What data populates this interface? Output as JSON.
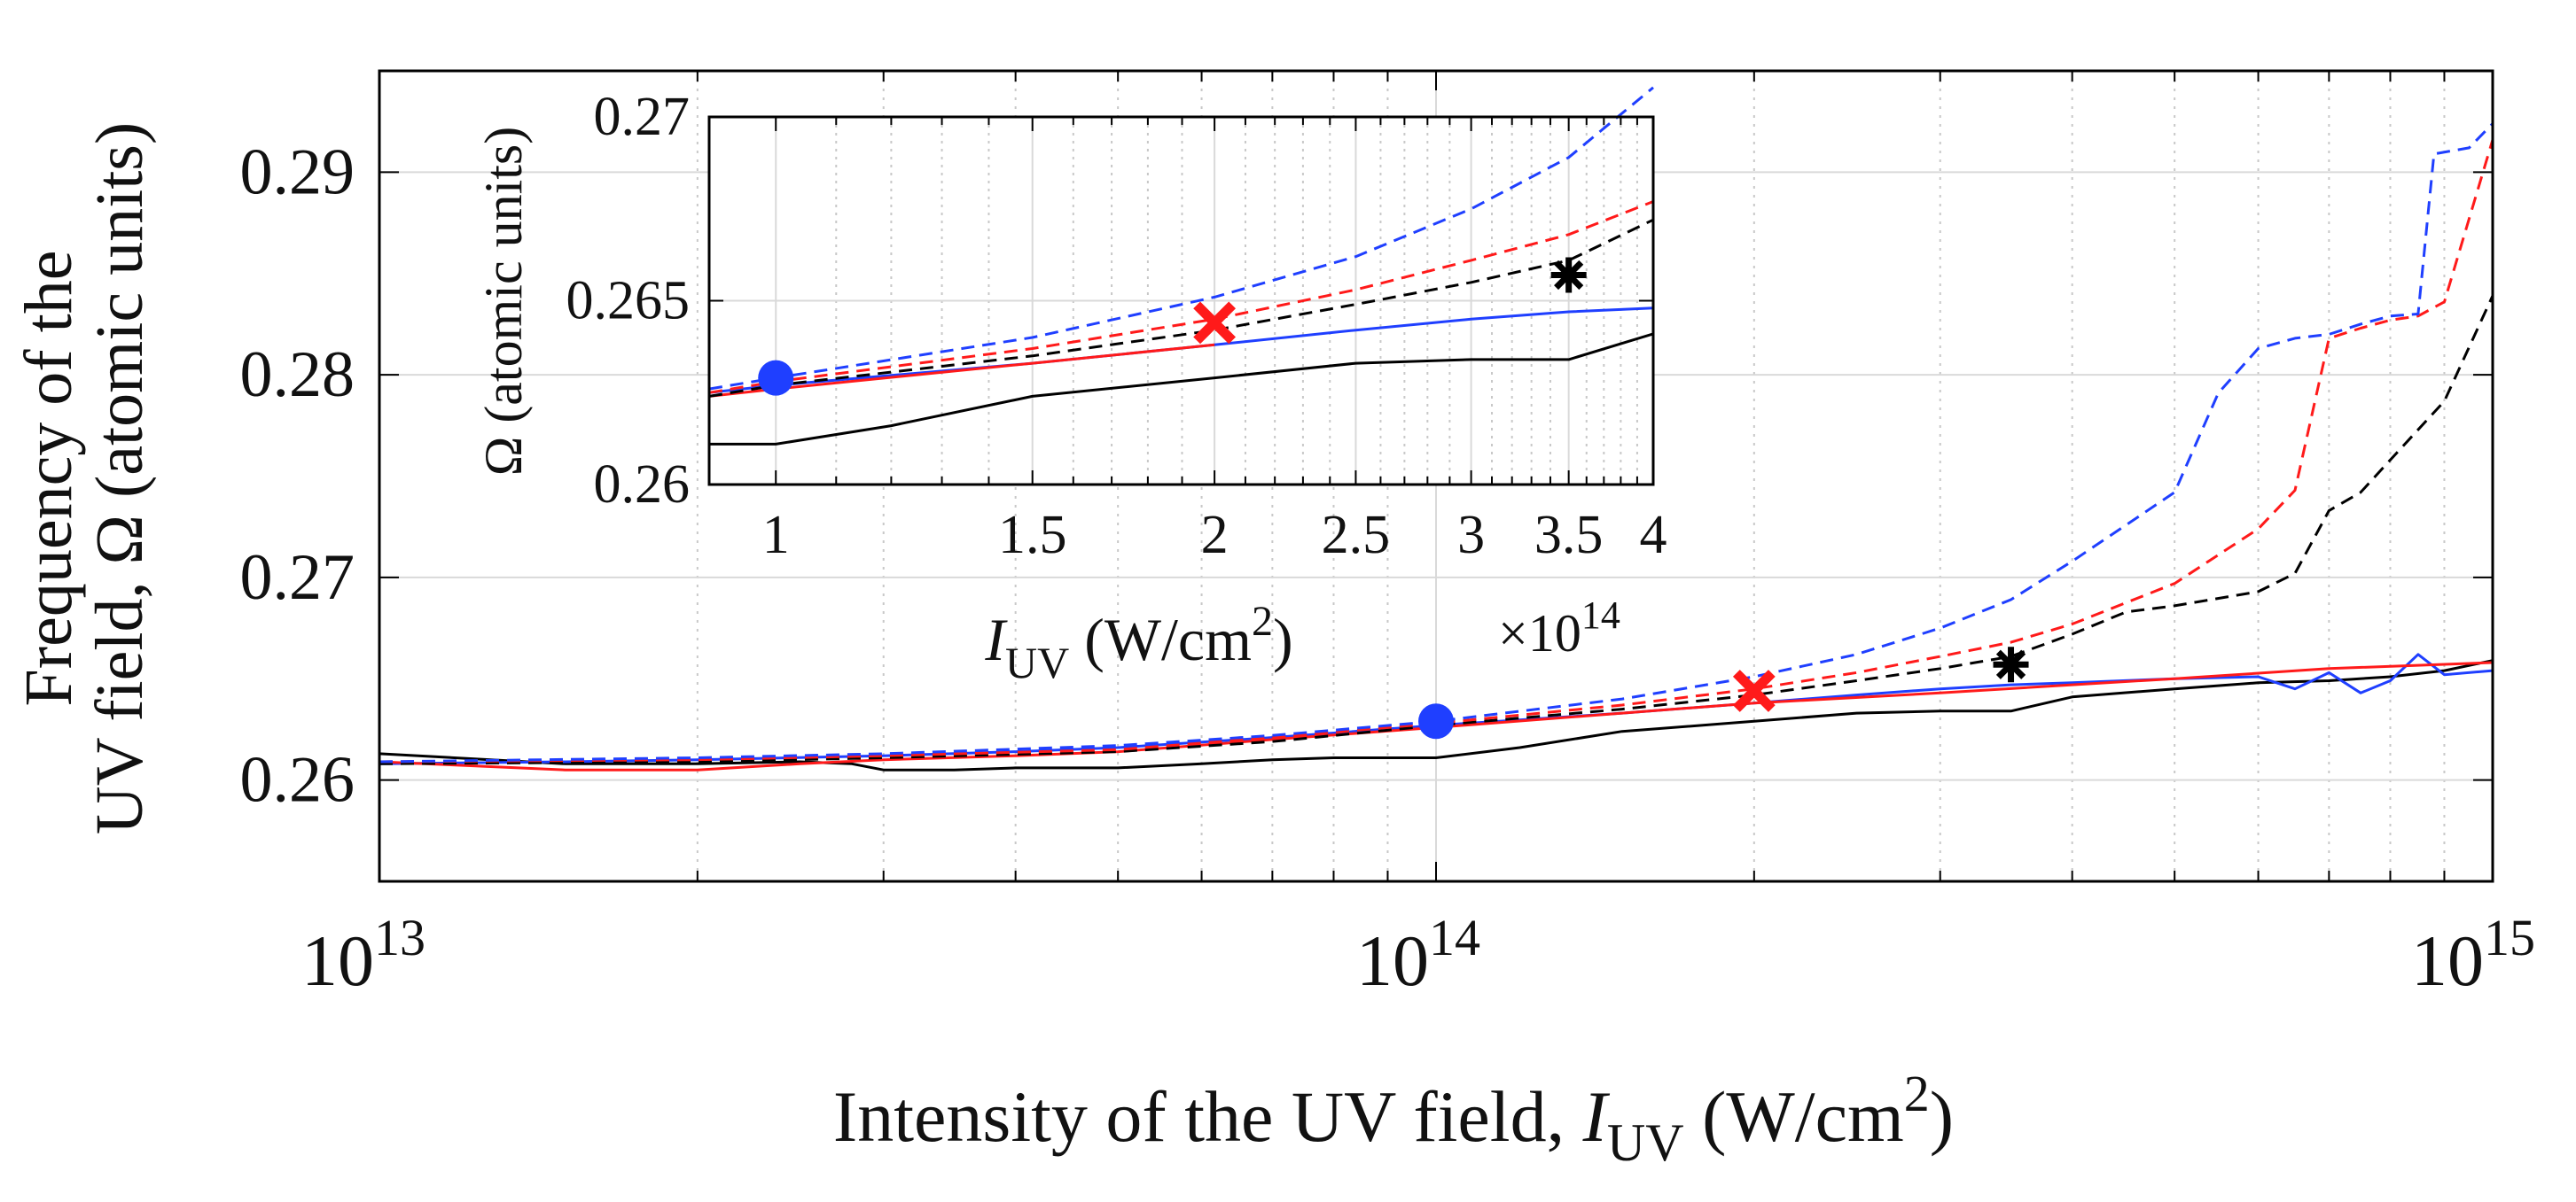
{
  "chart_data": [
    {
      "id": "main",
      "type": "line",
      "xscale": "log",
      "xlim": [
        10000000000000.0,
        1000000000000000.0
      ],
      "ylim": [
        0.255,
        0.295
      ],
      "yticks": [
        0.26,
        0.27,
        0.28,
        0.29
      ],
      "ytick_labels": [
        "0.26",
        "0.27",
        "0.28",
        "0.29"
      ],
      "xtick_labels": [
        {
          "value": 10000000000000.0,
          "base": "10",
          "exp": "13"
        },
        {
          "value": 100000000000000.0,
          "base": "10",
          "exp": "14"
        },
        {
          "value": 1000000000000000.0,
          "base": "10",
          "exp": "15"
        }
      ],
      "xlabel": {
        "text": "Intensity of the UV field, ",
        "italic": "I",
        "sub": "UV",
        "unit": " (W/cm",
        "sup": "2",
        "close": ")"
      },
      "ylabel": {
        "line1": "Frequency of the",
        "line2": "UV field, Ω (atomic units)"
      },
      "grid": true,
      "series": [
        {
          "name": "black-solid",
          "color": "#000000",
          "dash": "solid",
          "x": [
            10000000000000.0,
            15000000000000.0,
            20000000000000.0,
            25000000000000.0,
            28000000000000.0,
            30000000000000.0,
            35000000000000.0,
            40000000000000.0,
            50000000000000.0,
            60000000000000.0,
            70000000000000.0,
            80000000000000.0,
            100000000000000.0,
            120000000000000.0,
            150000000000000.0,
            200000000000000.0,
            250000000000000.0,
            300000000000000.0,
            350000000000000.0,
            400000000000000.0,
            500000000000000.0,
            600000000000000.0,
            700000000000000.0,
            800000000000000.0,
            900000000000000.0,
            1000000000000000.0
          ],
          "y": [
            0.2613,
            0.2608,
            0.2608,
            0.2609,
            0.2608,
            0.2605,
            0.2605,
            0.2606,
            0.2606,
            0.2608,
            0.261,
            0.2611,
            0.2611,
            0.2616,
            0.2624,
            0.2629,
            0.2633,
            0.2634,
            0.2634,
            0.2641,
            0.2645,
            0.2648,
            0.2649,
            0.2651,
            0.2654,
            0.2659
          ]
        },
        {
          "name": "blue-solid",
          "color": "#1f3fff",
          "dash": "solid",
          "x": [
            10000000000000.0,
            15000000000000.0,
            20000000000000.0,
            30000000000000.0,
            40000000000000.0,
            50000000000000.0,
            70000000000000.0,
            100000000000000.0,
            150000000000000.0,
            200000000000000.0,
            250000000000000.0,
            300000000000000.0,
            350000000000000.0,
            400000000000000.0,
            500000000000000.0,
            600000000000000.0,
            650000000000000.0,
            700000000000000.0,
            750000000000000.0,
            800000000000000.0,
            850000000000000.0,
            900000000000000.0,
            1000000000000000.0
          ],
          "y": [
            0.2608,
            0.2609,
            0.261,
            0.2612,
            0.2614,
            0.2616,
            0.2621,
            0.2627,
            0.2633,
            0.2638,
            0.2642,
            0.2645,
            0.2647,
            0.2648,
            0.265,
            0.2651,
            0.2645,
            0.2653,
            0.2643,
            0.2649,
            0.2662,
            0.2652,
            0.2654
          ]
        },
        {
          "name": "red-solid",
          "color": "#ff1a1a",
          "dash": "solid",
          "x": [
            10000000000000.0,
            15000000000000.0,
            20000000000000.0,
            25000000000000.0,
            30000000000000.0,
            40000000000000.0,
            50000000000000.0,
            70000000000000.0,
            100000000000000.0,
            150000000000000.0,
            200000000000000.0,
            300000000000000.0,
            400000000000000.0,
            500000000000000.0,
            700000000000000.0,
            1000000000000000.0
          ],
          "y": [
            0.2609,
            0.2605,
            0.2605,
            0.2608,
            0.261,
            0.2612,
            0.2614,
            0.262,
            0.2626,
            0.2633,
            0.2638,
            0.2643,
            0.2647,
            0.265,
            0.2655,
            0.2658
          ]
        },
        {
          "name": "black-dashed",
          "color": "#000000",
          "dash": "dashed",
          "x": [
            10000000000000.0,
            20000000000000.0,
            30000000000000.0,
            50000000000000.0,
            70000000000000.0,
            100000000000000.0,
            150000000000000.0,
            200000000000000.0,
            250000000000000.0,
            300000000000000.0,
            350000000000000.0,
            400000000000000.0,
            450000000000000.0,
            500000000000000.0,
            600000000000000.0,
            650000000000000.0,
            700000000000000.0,
            750000000000000.0,
            800000000000000.0,
            900000000000000.0,
            1000000000000000.0
          ],
          "y": [
            0.2608,
            0.2609,
            0.2611,
            0.2614,
            0.2619,
            0.2627,
            0.2635,
            0.2642,
            0.2649,
            0.2655,
            0.2661,
            0.2672,
            0.2683,
            0.2686,
            0.2693,
            0.2702,
            0.2733,
            0.2742,
            0.2758,
            0.2787,
            0.2839
          ]
        },
        {
          "name": "red-dashed",
          "color": "#ff1a1a",
          "dash": "dashed",
          "x": [
            10000000000000.0,
            20000000000000.0,
            30000000000000.0,
            50000000000000.0,
            70000000000000.0,
            100000000000000.0,
            150000000000000.0,
            200000000000000.0,
            250000000000000.0,
            300000000000000.0,
            350000000000000.0,
            400000000000000.0,
            500000000000000.0,
            600000000000000.0,
            650000000000000.0,
            700000000000000.0,
            750000000000000.0,
            800000000000000.0,
            850000000000000.0,
            900000000000000.0,
            1000000000000000.0
          ],
          "y": [
            0.2609,
            0.261,
            0.2612,
            0.2615,
            0.2621,
            0.2628,
            0.2637,
            0.2645,
            0.2653,
            0.2661,
            0.2668,
            0.2677,
            0.2697,
            0.2724,
            0.2743,
            0.2818,
            0.2823,
            0.2827,
            0.2829,
            0.2836,
            0.2916
          ]
        },
        {
          "name": "blue-dashed",
          "color": "#1f3fff",
          "dash": "dashed",
          "x": [
            10000000000000.0,
            20000000000000.0,
            30000000000000.0,
            50000000000000.0,
            70000000000000.0,
            100000000000000.0,
            150000000000000.0,
            200000000000000.0,
            250000000000000.0,
            300000000000000.0,
            350000000000000.0,
            400000000000000.0,
            500000000000000.0,
            550000000000000.0,
            600000000000000.0,
            650000000000000.0,
            700000000000000.0,
            750000000000000.0,
            800000000000000.0,
            850000000000000.0,
            880000000000000.0,
            950000000000000.0,
            1000000000000000.0
          ],
          "y": [
            0.2609,
            0.2611,
            0.2613,
            0.2617,
            0.2622,
            0.2629,
            0.264,
            0.2651,
            0.2662,
            0.2675,
            0.2689,
            0.2708,
            0.2742,
            0.2791,
            0.2813,
            0.2818,
            0.282,
            0.2825,
            0.2829,
            0.283,
            0.2909,
            0.2912,
            0.2924
          ]
        }
      ],
      "markers": [
        {
          "name": "blue-circle",
          "shape": "circle",
          "color": "#1f3fff",
          "x": 100000000000000.0,
          "y": 0.2629
        },
        {
          "name": "red-cross",
          "shape": "x",
          "color": "#ff1a1a",
          "x": 200000000000000.0,
          "y": 0.2644
        },
        {
          "name": "black-asterisk",
          "shape": "asterisk",
          "color": "#000000",
          "x": 350000000000000.0,
          "y": 0.2657
        }
      ]
    },
    {
      "id": "inset",
      "type": "line",
      "xscale": "log",
      "xlim": [
        0.9,
        4.0
      ],
      "ylim": [
        0.26,
        0.27
      ],
      "yticks": [
        0.26,
        0.265,
        0.27
      ],
      "ytick_labels": [
        "0.26",
        "0.265",
        "0.27"
      ],
      "xticks": [
        1,
        1.5,
        2,
        2.5,
        3,
        3.5,
        4
      ],
      "xtick_labels": [
        "1",
        "1.5",
        "2",
        "2.5",
        "3",
        "3.5",
        "4"
      ],
      "xlabel": {
        "italic": "I",
        "sub": "UV",
        "unit": " (W/cm",
        "sup": "2",
        "close": ")"
      },
      "ylabel": "Ω (atomic units)",
      "multiplier": {
        "base": "×10",
        "exp": "14"
      },
      "grid": true,
      "series": [
        {
          "name": "black-solid",
          "color": "#000000",
          "dash": "solid",
          "x": [
            0.9,
            1.0,
            1.2,
            1.5,
            2.0,
            2.5,
            3.0,
            3.5,
            4.0
          ],
          "y": [
            0.2611,
            0.2611,
            0.2616,
            0.2624,
            0.2629,
            0.2633,
            0.2634,
            0.2634,
            0.2641
          ]
        },
        {
          "name": "blue-solid",
          "color": "#1f3fff",
          "dash": "solid",
          "x": [
            0.9,
            1.0,
            1.5,
            2.0,
            2.5,
            3.0,
            3.5,
            4.0
          ],
          "y": [
            0.2625,
            0.2627,
            0.2633,
            0.2638,
            0.2642,
            0.2645,
            0.2647,
            0.2648
          ]
        },
        {
          "name": "red-solid",
          "color": "#ff1a1a",
          "dash": "solid",
          "x": [
            0.9,
            1.0,
            1.5,
            2.0
          ],
          "y": [
            0.2624,
            0.2626,
            0.2633,
            0.2638
          ]
        },
        {
          "name": "black-dashed",
          "color": "#000000",
          "dash": "dashed",
          "x": [
            0.9,
            1.0,
            1.5,
            2.0,
            2.5,
            3.0,
            3.5,
            4.0
          ],
          "y": [
            0.2624,
            0.2627,
            0.2635,
            0.2642,
            0.2649,
            0.2655,
            0.2661,
            0.2672
          ]
        },
        {
          "name": "red-dashed",
          "color": "#ff1a1a",
          "dash": "dashed",
          "x": [
            0.9,
            1.0,
            1.5,
            2.0,
            2.5,
            3.0,
            3.5,
            4.0
          ],
          "y": [
            0.2625,
            0.2628,
            0.2637,
            0.2645,
            0.2653,
            0.2661,
            0.2668,
            0.2677
          ]
        },
        {
          "name": "blue-dashed",
          "color": "#1f3fff",
          "dash": "dashed",
          "x": [
            0.9,
            1.0,
            1.5,
            2.0,
            2.5,
            3.0,
            3.5,
            4.0
          ],
          "y": [
            0.2626,
            0.2629,
            0.264,
            0.2651,
            0.2662,
            0.2675,
            0.2689,
            0.2708
          ]
        }
      ],
      "markers": [
        {
          "name": "blue-circle",
          "shape": "circle",
          "color": "#1f3fff",
          "x": 1.0,
          "y": 0.2629
        },
        {
          "name": "red-cross",
          "shape": "x",
          "color": "#ff1a1a",
          "x": 2.0,
          "y": 0.2644
        },
        {
          "name": "black-asterisk",
          "shape": "asterisk",
          "color": "#000000",
          "x": 3.5,
          "y": 0.2657
        }
      ]
    }
  ]
}
